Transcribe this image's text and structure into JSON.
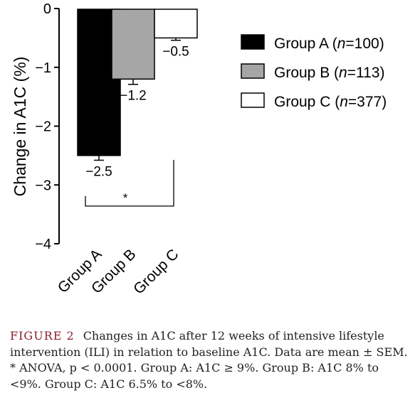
{
  "chart_data": {
    "type": "bar",
    "categories": [
      "Group A",
      "Group B",
      "Group C"
    ],
    "values": [
      -2.5,
      -1.2,
      -0.5
    ],
    "errors": [
      0.08,
      0.09,
      0.04
    ],
    "value_labels": [
      "−2.5",
      "−1.2",
      "−0.5"
    ],
    "ylabel": "Change in A1C (%)",
    "ylim": [
      -4,
      0
    ],
    "yticks": [
      0,
      -1,
      -2,
      -3,
      -4
    ],
    "ytick_labels": [
      "0",
      "−1",
      "−2",
      "−3",
      "−4"
    ],
    "grid": false,
    "colors": [
      "#000000",
      "#a6a6a6",
      "#ffffff"
    ],
    "legend_position": "right",
    "legend": [
      {
        "prefix": "Group A (",
        "n_italic": "n",
        "suffix": "=100)",
        "color": "#000000"
      },
      {
        "prefix": "Group B (",
        "n_italic": "n",
        "suffix": "=113)",
        "color": "#a6a6a6"
      },
      {
        "prefix": "Group C (",
        "n_italic": "n",
        "suffix": "=377)",
        "color": "#ffffff"
      }
    ],
    "significance": {
      "from": "Group A",
      "to": "Group C",
      "label": "*"
    }
  },
  "caption": {
    "label": "FIGURE 2",
    "text": "Changes in A1C after 12 weeks of intensive lifestyle intervention (ILI) in relation to baseline A1C. Data are mean ± SEM. * ANOVA, p < 0.0001. Group A: A1C ≥ 9%. Group B: A1C 8% to <9%. Group C: A1C 6.5% to <8%."
  }
}
